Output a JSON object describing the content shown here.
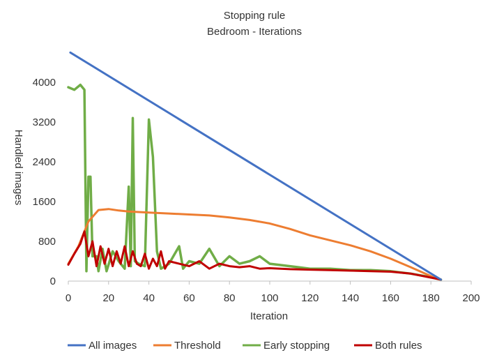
{
  "chart_data": {
    "type": "line",
    "title": "Stopping rule",
    "subtitle": "Bedroom - Iterations",
    "xlabel": "Iteration",
    "ylabel": "Handled images",
    "xlim": [
      0,
      200
    ],
    "ylim": [
      0,
      4000
    ],
    "x_ticks": [
      "0",
      "20",
      "40",
      "60",
      "80",
      "100",
      "120",
      "140",
      "160",
      "180",
      "200"
    ],
    "y_ticks": [
      "0",
      "800",
      "1600",
      "2400",
      "3200",
      "4000"
    ],
    "grid": "none",
    "legend_position": "bottom",
    "series": [
      {
        "name": "All images",
        "color": "#4472C4",
        "points": [
          [
            1,
            4600
          ],
          [
            185,
            30
          ]
        ]
      },
      {
        "name": "Threshold",
        "color": "#ED7D31",
        "points": [
          [
            0,
            350
          ],
          [
            5,
            700
          ],
          [
            10,
            1200
          ],
          [
            15,
            1430
          ],
          [
            20,
            1450
          ],
          [
            25,
            1420
          ],
          [
            30,
            1400
          ],
          [
            40,
            1380
          ],
          [
            50,
            1360
          ],
          [
            60,
            1340
          ],
          [
            70,
            1320
          ],
          [
            80,
            1280
          ],
          [
            90,
            1230
          ],
          [
            100,
            1160
          ],
          [
            110,
            1050
          ],
          [
            120,
            920
          ],
          [
            130,
            820
          ],
          [
            140,
            720
          ],
          [
            150,
            600
          ],
          [
            160,
            450
          ],
          [
            170,
            280
          ],
          [
            180,
            100
          ],
          [
            185,
            30
          ]
        ]
      },
      {
        "name": "Early stopping",
        "color": "#70AD47",
        "points": [
          [
            0,
            3900
          ],
          [
            3,
            3850
          ],
          [
            6,
            3950
          ],
          [
            8,
            3850
          ],
          [
            9,
            200
          ],
          [
            10,
            2100
          ],
          [
            11,
            2100
          ],
          [
            12,
            500
          ],
          [
            14,
            500
          ],
          [
            15,
            200
          ],
          [
            17,
            650
          ],
          [
            19,
            200
          ],
          [
            22,
            600
          ],
          [
            25,
            400
          ],
          [
            28,
            250
          ],
          [
            30,
            1900
          ],
          [
            31,
            300
          ],
          [
            32,
            3280
          ],
          [
            33,
            400
          ],
          [
            35,
            350
          ],
          [
            38,
            300
          ],
          [
            40,
            3250
          ],
          [
            42,
            2500
          ],
          [
            44,
            600
          ],
          [
            46,
            250
          ],
          [
            50,
            350
          ],
          [
            55,
            700
          ],
          [
            57,
            250
          ],
          [
            60,
            400
          ],
          [
            65,
            350
          ],
          [
            70,
            650
          ],
          [
            75,
            300
          ],
          [
            80,
            500
          ],
          [
            85,
            350
          ],
          [
            90,
            400
          ],
          [
            95,
            500
          ],
          [
            100,
            350
          ],
          [
            110,
            300
          ],
          [
            120,
            250
          ],
          [
            130,
            250
          ],
          [
            140,
            220
          ],
          [
            150,
            220
          ],
          [
            160,
            200
          ],
          [
            170,
            150
          ],
          [
            180,
            80
          ],
          [
            185,
            30
          ]
        ]
      },
      {
        "name": "Both rules",
        "color": "#C00000",
        "points": [
          [
            0,
            330
          ],
          [
            3,
            550
          ],
          [
            6,
            750
          ],
          [
            8,
            1000
          ],
          [
            10,
            500
          ],
          [
            12,
            800
          ],
          [
            14,
            300
          ],
          [
            16,
            700
          ],
          [
            18,
            350
          ],
          [
            20,
            650
          ],
          [
            22,
            300
          ],
          [
            24,
            600
          ],
          [
            26,
            350
          ],
          [
            28,
            700
          ],
          [
            30,
            300
          ],
          [
            32,
            600
          ],
          [
            34,
            350
          ],
          [
            36,
            300
          ],
          [
            38,
            550
          ],
          [
            40,
            250
          ],
          [
            42,
            450
          ],
          [
            44,
            300
          ],
          [
            46,
            600
          ],
          [
            48,
            250
          ],
          [
            50,
            400
          ],
          [
            55,
            350
          ],
          [
            60,
            300
          ],
          [
            65,
            400
          ],
          [
            70,
            250
          ],
          [
            75,
            350
          ],
          [
            80,
            300
          ],
          [
            85,
            280
          ],
          [
            90,
            300
          ],
          [
            95,
            250
          ],
          [
            100,
            260
          ],
          [
            110,
            240
          ],
          [
            120,
            230
          ],
          [
            130,
            220
          ],
          [
            140,
            210
          ],
          [
            150,
            200
          ],
          [
            160,
            190
          ],
          [
            170,
            150
          ],
          [
            180,
            70
          ],
          [
            185,
            30
          ]
        ]
      }
    ]
  }
}
